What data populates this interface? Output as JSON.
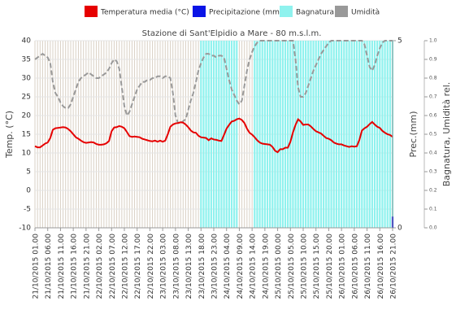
{
  "chart_data": {
    "type": "line",
    "title": "Stazione di Sant'Elpidio a Mare - 80 m.s.l.m.",
    "y_label": "Temp. (°C)",
    "y2_label": "Prec.(mm)",
    "y3_label": "Bagnatura, Umidità rel.",
    "categories": [
      "21/10/2015 01.00",
      null,
      null,
      null,
      null,
      "21/10/2015 06.00",
      null,
      null,
      null,
      null,
      "21/10/2015 11.00",
      null,
      null,
      null,
      null,
      "21/10/2015 16.00",
      null,
      null,
      null,
      null,
      "21/10/2015 21.00",
      null,
      null,
      null,
      null,
      "22/10/2015 02.00",
      null,
      null,
      null,
      null,
      "22/10/2015 07.00",
      null,
      null,
      null,
      null,
      "22/10/2015 12.00",
      null,
      null,
      null,
      null,
      "22/10/2015 17.00",
      null,
      null,
      null,
      null,
      "22/10/2015 22.00",
      null,
      null,
      null,
      null,
      "23/10/2015 03.00",
      null,
      null,
      null,
      null,
      "23/10/2015 08.00",
      null,
      null,
      null,
      null,
      "23/10/2015 13.00",
      null,
      null,
      null,
      null,
      "23/10/2015 18.00",
      null,
      null,
      null,
      null,
      "23/10/2015 23.00",
      null,
      null,
      null,
      null,
      "24/10/2015 04.00",
      null,
      null,
      null,
      null,
      "24/10/2015 09.00",
      null,
      null,
      null,
      null,
      "24/10/2015 14.00",
      null,
      null,
      null,
      null,
      "24/10/2015 19.00",
      null,
      null,
      null,
      null,
      "25/10/2015 00.00",
      null,
      null,
      null,
      null,
      "25/10/2015 05.00",
      null,
      null,
      null,
      null,
      "25/10/2015 10.00",
      null,
      null,
      null,
      null,
      "25/10/2015 15.00",
      null,
      null,
      null,
      null,
      "25/10/2015 20.00",
      null,
      null,
      null,
      null,
      "26/10/2015 01.00",
      null,
      null,
      null,
      null,
      "26/10/2015 06.00",
      null,
      null,
      null,
      null,
      "26/10/2015 11.00",
      null,
      null,
      null,
      null,
      "26/10/2015 16.00",
      null,
      null,
      null,
      null,
      "26/10/2015 21.00"
    ],
    "series": [
      {
        "name": "Bagnatura",
        "color": "#8ff2ee",
        "kind": "bar",
        "axis": "y3",
        "values": [
          0,
          0,
          0,
          0,
          0,
          0,
          0,
          0,
          0,
          0,
          0,
          0,
          0,
          0,
          0,
          0,
          0,
          0,
          0,
          0,
          0,
          0,
          0,
          0,
          0,
          0,
          0,
          0,
          0,
          0,
          0,
          0,
          0,
          0,
          0,
          0,
          0,
          0,
          0,
          0,
          0,
          0,
          0,
          0,
          0,
          0,
          0,
          0,
          0,
          0,
          0,
          0,
          0,
          0,
          0,
          0,
          0,
          0,
          0,
          0,
          0,
          0,
          0,
          0,
          0,
          1,
          1,
          1,
          1,
          1,
          1,
          1,
          1,
          1,
          1,
          1,
          1,
          1,
          1,
          1,
          0,
          0,
          0,
          0,
          0,
          0,
          1,
          1,
          1,
          1,
          1,
          1,
          1,
          1,
          1,
          1,
          1,
          1,
          1,
          1,
          1,
          1,
          1,
          1,
          1,
          1,
          1,
          1,
          1,
          1,
          1,
          1,
          1,
          1,
          1,
          1,
          1,
          1,
          1,
          1,
          1,
          1,
          1,
          1,
          1,
          1,
          1,
          1,
          1,
          1,
          1,
          1,
          1,
          1,
          1,
          1,
          1,
          1,
          1,
          1,
          1
        ]
      },
      {
        "name": "Precipitazione (mm)",
        "color": "#0a14e6",
        "kind": "bar",
        "axis": "y2",
        "values": [
          0,
          0,
          0,
          0,
          0,
          0,
          0,
          0,
          0,
          0,
          0,
          0,
          0,
          0,
          0,
          0,
          0,
          0,
          0,
          0,
          0,
          0,
          0,
          0,
          0,
          0,
          0,
          0,
          0,
          0,
          0,
          0,
          0,
          0,
          0,
          0,
          0,
          0,
          0,
          0,
          0,
          0,
          0,
          0,
          0,
          0,
          0,
          0,
          0,
          0,
          0,
          0,
          0,
          0,
          0,
          0,
          0,
          0,
          0,
          0,
          0,
          0,
          0,
          0,
          0,
          0,
          0,
          0,
          0,
          0,
          0,
          0,
          0,
          0,
          0,
          0,
          0,
          0,
          0,
          0,
          0,
          0,
          0,
          0,
          0,
          0,
          0,
          0,
          0,
          0,
          0,
          0,
          0,
          0,
          0,
          0,
          0,
          0,
          0,
          0,
          0,
          0,
          0,
          0,
          0,
          0,
          0,
          0,
          0,
          0,
          0,
          0,
          0,
          0,
          0,
          0,
          0,
          0,
          0,
          0,
          0,
          0,
          0,
          0,
          0,
          0,
          0,
          0,
          0,
          0,
          0,
          0,
          0,
          0,
          0,
          0,
          0,
          0,
          0,
          0,
          0.3
        ]
      },
      {
        "name": "Umidità",
        "color": "#999999",
        "kind": "line",
        "dashed": true,
        "axis": "y3",
        "values": [
          0.9,
          0.91,
          0.92,
          0.93,
          0.92,
          0.91,
          0.88,
          0.78,
          0.72,
          0.7,
          0.67,
          0.65,
          0.64,
          0.64,
          0.66,
          0.7,
          0.74,
          0.78,
          0.8,
          0.81,
          0.82,
          0.83,
          0.82,
          0.81,
          0.8,
          0.8,
          0.81,
          0.82,
          0.83,
          0.85,
          0.88,
          0.9,
          0.89,
          0.85,
          0.75,
          0.65,
          0.6,
          0.62,
          0.66,
          0.7,
          0.74,
          0.76,
          0.78,
          0.78,
          0.79,
          0.79,
          0.8,
          0.8,
          0.81,
          0.81,
          0.8,
          0.81,
          0.81,
          0.8,
          0.72,
          0.6,
          0.56,
          0.56,
          0.57,
          0.58,
          0.63,
          0.68,
          0.72,
          0.78,
          0.84,
          0.88,
          0.91,
          0.93,
          0.93,
          0.92,
          0.92,
          0.91,
          0.92,
          0.92,
          0.91,
          0.85,
          0.79,
          0.74,
          0.71,
          0.68,
          0.66,
          0.68,
          0.76,
          0.84,
          0.9,
          0.94,
          0.97,
          0.99,
          1,
          1,
          1,
          1,
          1,
          1,
          1,
          1,
          1,
          1,
          1,
          1,
          1,
          1,
          0.9,
          0.75,
          0.7,
          0.7,
          0.72,
          0.76,
          0.8,
          0.84,
          0.87,
          0.9,
          0.93,
          0.95,
          0.97,
          0.99,
          1,
          1,
          1,
          1,
          1,
          1,
          1,
          1,
          1,
          1,
          1,
          1,
          1,
          0.98,
          0.92,
          0.86,
          0.84,
          0.87,
          0.92,
          0.96,
          0.99,
          1,
          1,
          1,
          1
        ]
      },
      {
        "name": "Temperatura media (°C)",
        "color": "#e60000",
        "kind": "line",
        "axis": "y",
        "values": [
          11.8,
          11.5,
          11.5,
          12,
          12.5,
          12.8,
          14,
          16.2,
          16.6,
          16.7,
          16.8,
          16.9,
          16.8,
          16.4,
          15.8,
          15,
          14.2,
          13.8,
          13.3,
          12.9,
          12.7,
          12.8,
          12.9,
          12.8,
          12.4,
          12.2,
          12.2,
          12.3,
          12.6,
          13.2,
          15.8,
          16.8,
          16.9,
          17.2,
          17,
          16.6,
          15.6,
          14.5,
          14.3,
          14.4,
          14.3,
          14.2,
          13.8,
          13.6,
          13.4,
          13.2,
          13.1,
          13.3,
          13,
          13.3,
          13,
          13.3,
          15,
          17,
          17.6,
          17.9,
          18,
          18.2,
          18.1,
          17.6,
          16.9,
          16,
          15.5,
          15.4,
          14.6,
          14.2,
          14.1,
          14,
          13.4,
          13.9,
          13.6,
          13.5,
          13.3,
          13.2,
          14.8,
          16.5,
          17.5,
          18.4,
          18.6,
          19,
          19.2,
          18.8,
          18,
          16.5,
          15.4,
          14.9,
          14.2,
          13.4,
          12.8,
          12.5,
          12.4,
          12.3,
          12.2,
          11.6,
          10.6,
          10.2,
          11,
          11,
          11.4,
          11.4,
          13,
          15.5,
          17.5,
          19,
          18.4,
          17.5,
          17.6,
          17.6,
          17.1,
          16.4,
          15.8,
          15.5,
          15.2,
          14.6,
          14,
          13.8,
          13.4,
          12.8,
          12.5,
          12.3,
          12.3,
          12,
          11.8,
          11.6,
          11.8,
          11.7,
          11.8,
          13.5,
          16,
          16.6,
          17,
          17.7,
          18.3,
          17.6,
          17,
          16.7,
          15.9,
          15.4,
          15,
          14.8,
          14.3
        ]
      }
    ],
    "legend_order": [
      3,
      1,
      0,
      2
    ],
    "ylim": [
      -10,
      40
    ],
    "yticks": [
      -10,
      -5,
      0,
      5,
      10,
      15,
      20,
      25,
      30,
      35,
      40
    ],
    "y2lim": [
      0,
      5
    ],
    "y2ticks": [
      0,
      5
    ],
    "y3lim": [
      0,
      1
    ],
    "y3ticks": [
      {
        "value": 0,
        "label": "0.0"
      },
      0.1,
      0.2,
      0.3,
      0.4,
      0.5,
      0.6,
      0.7,
      0.8,
      0.9,
      {
        "value": 1,
        "label": "1.0"
      }
    ],
    "grid": true
  }
}
